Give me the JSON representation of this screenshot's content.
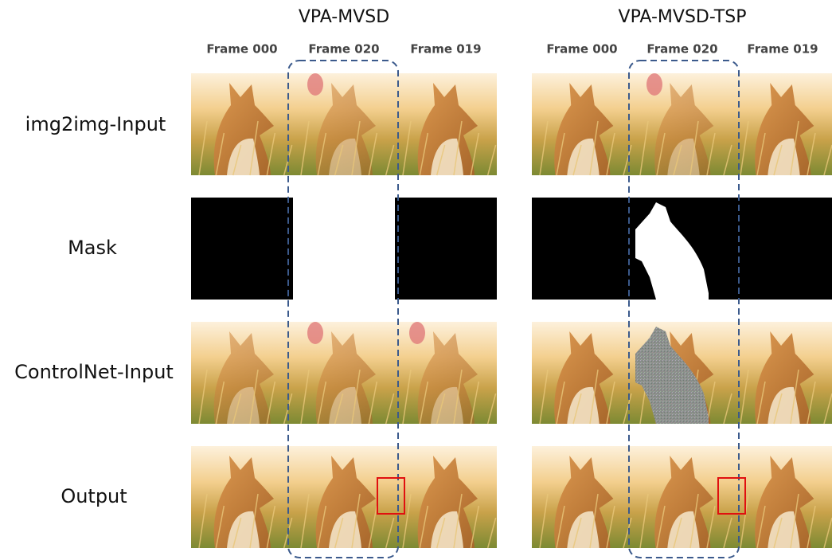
{
  "panels": [
    {
      "title": "VPA-MVSD",
      "frames": [
        "Frame 000",
        "Frame 020",
        "Frame 019"
      ]
    },
    {
      "title": "VPA-MVSD-TSP",
      "frames": [
        "Frame 000",
        "Frame 020",
        "Frame 019"
      ]
    }
  ],
  "rows": [
    "img2img-Input",
    "Mask",
    "ControlNet-Input",
    "Output"
  ]
}
